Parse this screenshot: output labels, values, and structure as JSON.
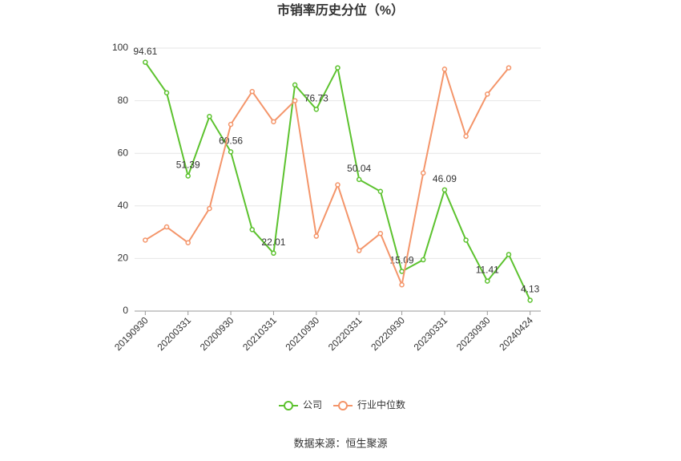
{
  "chart_data": {
    "type": "line",
    "title": "市销率历史分位（%）",
    "categories": [
      "20190930",
      null,
      "20200331",
      null,
      "20200930",
      null,
      "20210331",
      null,
      "20210930",
      null,
      "20220331",
      null,
      "20220930",
      null,
      "20230331",
      null,
      "20230930",
      null,
      "20240424"
    ],
    "series": [
      {
        "name": "公司",
        "color": "#5cc22e",
        "values": [
          94.61,
          83,
          51.39,
          74,
          60.56,
          31,
          22.01,
          86,
          76.73,
          92.5,
          50.04,
          45.5,
          15.09,
          19.5,
          46.09,
          27,
          11.41,
          21.5,
          4.13
        ]
      },
      {
        "name": "行业中位数",
        "color": "#f4956a",
        "values": [
          27,
          32,
          26,
          39,
          71,
          83.5,
          72,
          80,
          28.5,
          48,
          23,
          29.5,
          10,
          52.5,
          92,
          66.5,
          82.5,
          92.5,
          null
        ]
      }
    ],
    "ylim": [
      0,
      100
    ],
    "yticks": [
      0,
      20,
      40,
      60,
      80,
      100
    ],
    "grid": true,
    "legend": "bottom",
    "source": "数据来源：恒生聚源"
  }
}
